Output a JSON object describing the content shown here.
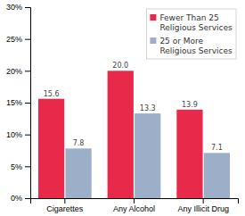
{
  "chart_data": {
    "type": "bar",
    "categories": [
      "Cigarettes",
      "Any Alcohol",
      "Any Illicit Drug"
    ],
    "series": [
      {
        "name": "Fewer Than 25\nReligious Services",
        "color": "#e8294a",
        "values": [
          15.6,
          20.0,
          13.9
        ],
        "value_labels": [
          "15.6",
          "20.0",
          "13.9"
        ]
      },
      {
        "name": "25 or More\nReligious Services",
        "color": "#9daec8",
        "values": [
          7.8,
          13.3,
          7.1
        ],
        "value_labels": [
          "7.8",
          "13.3",
          "7.1"
        ]
      }
    ],
    "ylim": [
      0,
      30
    ],
    "yticks": [
      {
        "value": 0,
        "label": "0%"
      },
      {
        "value": 5,
        "label": "5%"
      },
      {
        "value": 10,
        "label": "10%"
      },
      {
        "value": 15,
        "label": "15%"
      },
      {
        "value": 20,
        "label": "20%"
      },
      {
        "value": 25,
        "label": "25%"
      },
      {
        "value": 30,
        "label": "30%"
      }
    ],
    "data_labels": true,
    "legend": "upper right",
    "grid": false
  }
}
